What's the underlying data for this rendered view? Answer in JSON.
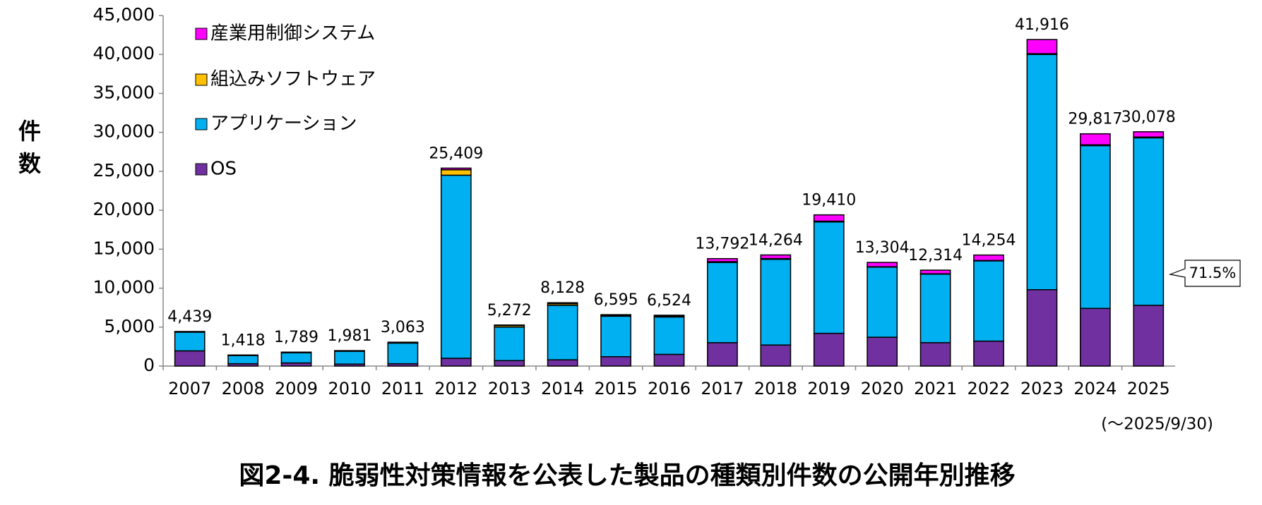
{
  "chart_data": {
    "type": "stacked_bar",
    "title": "図2-4. 脆弱性対策情報を公表した製品の種類別件数の公開年別推移",
    "y_label": "件数",
    "footnote": "(～2025/9/30)",
    "annotation": "71.5%",
    "categories": [
      "2007",
      "2008",
      "2009",
      "2010",
      "2011",
      "2012",
      "2013",
      "2014",
      "2015",
      "2016",
      "2017",
      "2018",
      "2019",
      "2020",
      "2021",
      "2022",
      "2023",
      "2024",
      "2025"
    ],
    "series": [
      {
        "name": "OS",
        "color": "#7030a0",
        "values": [
          1950,
          300,
          400,
          250,
          300,
          1000,
          700,
          800,
          1200,
          1500,
          3000,
          2700,
          4200,
          3700,
          3000,
          3200,
          9800,
          7400,
          7800
        ]
      },
      {
        "name": "アプリケーション",
        "color": "#00b0f0",
        "values": [
          2400,
          1050,
          1300,
          1650,
          2650,
          23500,
          4300,
          7000,
          5200,
          4800,
          10300,
          11000,
          14300,
          9000,
          8800,
          10300,
          30200,
          20900,
          21500
        ]
      },
      {
        "name": "組込みソフトウェア",
        "color": "#ffc000",
        "values": [
          50,
          40,
          50,
          50,
          80,
          700,
          200,
          200,
          100,
          100,
          100,
          100,
          100,
          50,
          50,
          50,
          100,
          100,
          100
        ]
      },
      {
        "name": "産業用制御システム",
        "color": "#ff00ff",
        "values": [
          39,
          28,
          39,
          31,
          33,
          209,
          72,
          128,
          95,
          124,
          392,
          464,
          810,
          554,
          464,
          704,
          1816,
          1417,
          678
        ]
      }
    ],
    "totals": [
      {
        "value": 4439,
        "label": "4,439"
      },
      {
        "value": 1418,
        "label": "1,418"
      },
      {
        "value": 1789,
        "label": "1,789"
      },
      {
        "value": 1981,
        "label": "1,981"
      },
      {
        "value": 3063,
        "label": "3,063"
      },
      {
        "value": 25409,
        "label": "25,409"
      },
      {
        "value": 5272,
        "label": "5,272"
      },
      {
        "value": 8128,
        "label": "8,128"
      },
      {
        "value": 6595,
        "label": "6,595"
      },
      {
        "value": 6524,
        "label": "6,524"
      },
      {
        "value": 13792,
        "label": "13,792"
      },
      {
        "value": 14264,
        "label": "14,264"
      },
      {
        "value": 19410,
        "label": "19,410"
      },
      {
        "value": 13304,
        "label": "13,304"
      },
      {
        "value": 12314,
        "label": "12,314"
      },
      {
        "value": 14254,
        "label": "14,254"
      },
      {
        "value": 41916,
        "label": "41,916"
      },
      {
        "value": 29817,
        "label": "29,817"
      },
      {
        "value": 30078,
        "label": "30,078"
      }
    ],
    "ylim": [
      0,
      45000
    ],
    "yticks": [
      0,
      {
        "value": 5000,
        "label": "5,000"
      },
      {
        "value": 10000,
        "label": "10,000"
      },
      {
        "value": 15000,
        "label": "15,000"
      },
      {
        "value": 20000,
        "label": "20,000"
      },
      {
        "value": 25000,
        "label": "25,000"
      },
      {
        "value": 30000,
        "label": "30,000"
      },
      {
        "value": 35000,
        "label": "35,000"
      },
      {
        "value": 40000,
        "label": "40,000"
      },
      {
        "value": 45000,
        "label": "45,000"
      }
    ],
    "legend": "upper-left"
  }
}
